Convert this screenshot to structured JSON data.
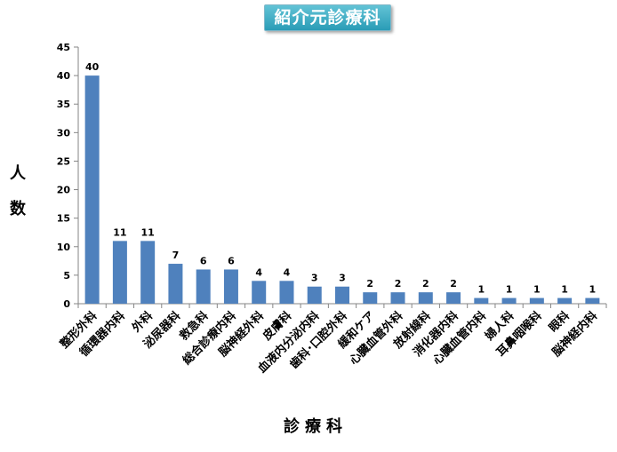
{
  "chart_data": {
    "type": "bar",
    "title": "紹介元診療科",
    "ylabel": "人数",
    "xlabel": "診療科",
    "ylim": [
      0,
      45
    ],
    "yticks": [
      0,
      5,
      10,
      15,
      20,
      25,
      30,
      35,
      40,
      45
    ],
    "grid": false,
    "legend": "none",
    "bar_color": "#4f81bd",
    "categories": [
      "整形外科",
      "循環器内科",
      "外科",
      "泌尿器科",
      "救急科",
      "総合診療内科",
      "脳神経外科",
      "皮膚科",
      "血液内分泌内科",
      "歯科･口腔外科",
      "緩和ケア",
      "心臓血管外科",
      "放射線科",
      "消化器内科",
      "心臓血管内科",
      "婦人科",
      "耳鼻咽喉科",
      "眼科",
      "脳神経内科"
    ],
    "values": [
      40,
      11,
      11,
      7,
      6,
      6,
      4,
      4,
      3,
      3,
      2,
      2,
      2,
      2,
      1,
      1,
      1,
      1,
      1
    ]
  }
}
